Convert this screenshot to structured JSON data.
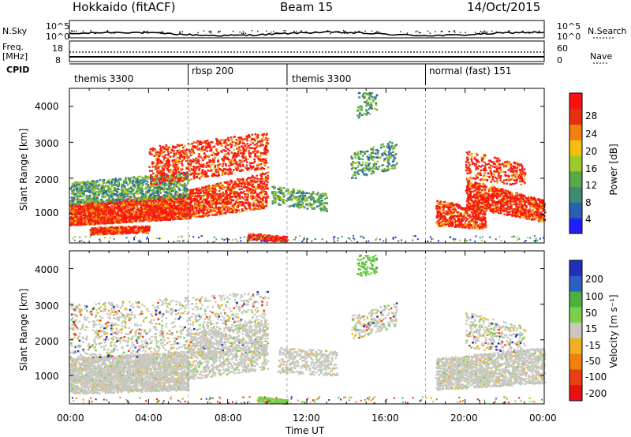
{
  "header": {
    "radar": "Hokkaido (fitACF)",
    "beam": "Beam 15",
    "date": "14/Oct/2015"
  },
  "side_labels": {
    "nsky": "N.Sky",
    "freq": "Freq.",
    "freq_unit": "[MHz]",
    "cpid": "CPID",
    "nsearch": "N.Search",
    "nave": "Nave"
  },
  "cpid_segments": [
    {
      "label": "themis 3300",
      "start": "00:00",
      "end": "06:00"
    },
    {
      "label": "rbsp 200",
      "start": "06:00",
      "end": "11:00"
    },
    {
      "label": "themis 3300",
      "start": "11:00",
      "end": "18:00"
    },
    {
      "label": "normal (fast) 151",
      "start": "18:00",
      "end": "24:00"
    }
  ],
  "chart_data": [
    {
      "type": "line",
      "title": "N.Sky / N.Search",
      "yticks": [
        "10^5",
        "10^0"
      ],
      "yticks_right": [
        "10^5",
        "10^0"
      ]
    },
    {
      "type": "line",
      "title": "Freq. / Nave",
      "ylabel": "Freq. [MHz]",
      "yticks": [
        "18",
        "8"
      ],
      "yticks_right": [
        "60",
        "0"
      ]
    },
    {
      "type": "heatmap",
      "ylabel": "Slant Range [km]",
      "yticks": [
        "1000",
        "2000",
        "3000",
        "4000"
      ],
      "ylim": [
        200,
        4500
      ],
      "xlim": [
        0,
        24
      ],
      "colorbar": {
        "label": "Power [dB]",
        "ticks": [
          "4",
          "8",
          "12",
          "16",
          "20",
          "24",
          "28"
        ]
      }
    },
    {
      "type": "heatmap",
      "ylabel": "Slant Range [km]",
      "xlabel": "Time UT",
      "yticks": [
        "1000",
        "2000",
        "3000",
        "4000"
      ],
      "ylim": [
        200,
        4500
      ],
      "xlim": [
        0,
        24
      ],
      "xticks": [
        "00:00",
        "04:00",
        "08:00",
        "12:00",
        "16:00",
        "20:00",
        "00:00"
      ],
      "colorbar": {
        "label": "Velocity [m s⁻¹]",
        "ticks": [
          "200",
          "100",
          "50",
          "15",
          "-15",
          "-50",
          "-100",
          "-200"
        ]
      }
    }
  ],
  "power_colors": [
    "#2020ff",
    "#2a60b0",
    "#3c8a78",
    "#5aa84a",
    "#a0c82a",
    "#f4c010",
    "#f08010",
    "#e83010",
    "#ff1010"
  ],
  "velocity_colors": [
    "#2030b8",
    "#2c60c0",
    "#4ab040",
    "#7ad048",
    "#c8c8c0",
    "#f0b020",
    "#f08010",
    "#e84010",
    "#e81010"
  ]
}
